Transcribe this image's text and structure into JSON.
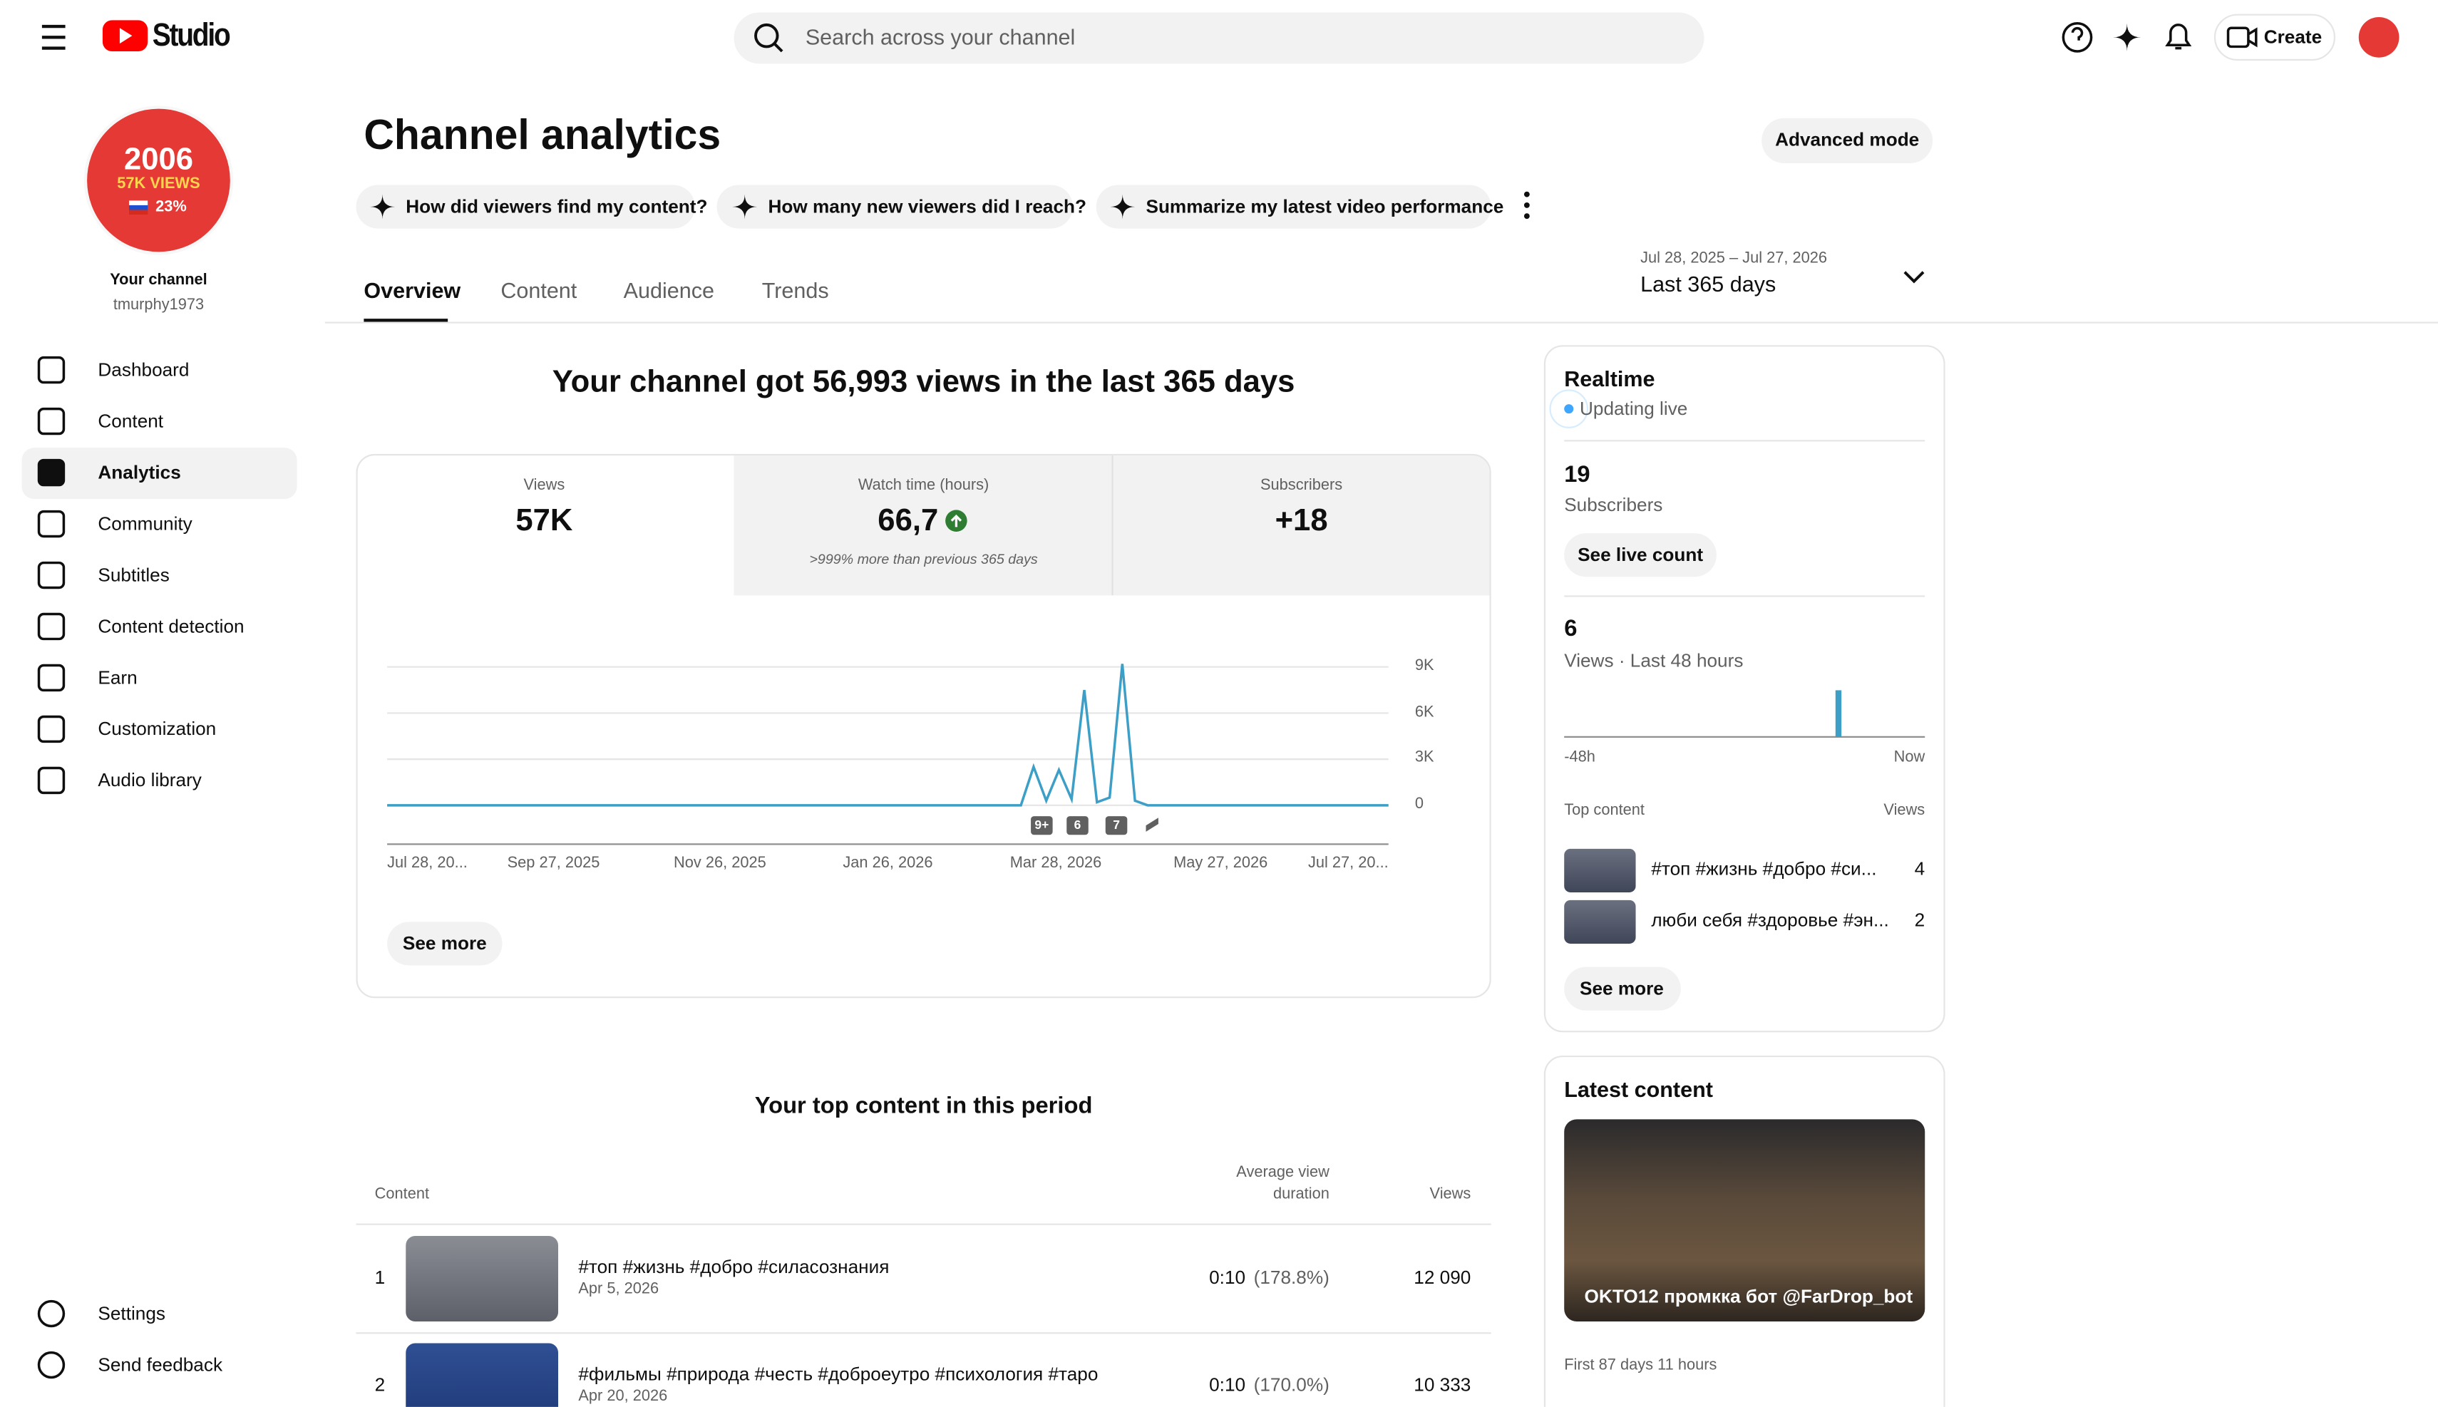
{
  "header": {
    "logo": "Studio",
    "search_placeholder": "Search across your channel",
    "create": "Create"
  },
  "sidebar": {
    "avatar_lines": [
      "2006",
      "57K VIEWS",
      "23%"
    ],
    "channel_label": "Your channel",
    "handle": "tmurphy1973",
    "nav": [
      "Dashboard",
      "Content",
      "Analytics",
      "Community",
      "Subtitles",
      "Content detection",
      "Earn",
      "Customization",
      "Audio library"
    ],
    "footer": [
      "Settings",
      "Send feedback"
    ]
  },
  "page": {
    "title": "Channel analytics",
    "advanced": "Advanced mode",
    "prompts": [
      "How did viewers find my content?",
      "How many new viewers did I reach?",
      "Summarize my latest video performance"
    ],
    "tabs": [
      "Overview",
      "Content",
      "Audience",
      "Trends"
    ],
    "date_range": "Jul 28, 2025 – Jul 27, 2026",
    "period": "Last 365 days"
  },
  "summary": {
    "headline": "Your channel got 56,993 views in the last 365 days",
    "metrics": [
      {
        "label": "Views",
        "value": "57K"
      },
      {
        "label": "Watch time (hours)",
        "value": "66,7",
        "note": ">999% more than previous 365 days"
      },
      {
        "label": "Subscribers",
        "value": "+18"
      }
    ],
    "see_more": "See more"
  },
  "views_chart": {
    "type": "line",
    "color": "#3d9fc6",
    "values": [
      0,
      0,
      0,
      0,
      0,
      0,
      0,
      0,
      0,
      0,
      0,
      0,
      0,
      0,
      0,
      0,
      0,
      0,
      0,
      0,
      0,
      0,
      0,
      0,
      0,
      0,
      0,
      0,
      0,
      0,
      0,
      0,
      0,
      0,
      0,
      0,
      0,
      0,
      0,
      0,
      0,
      0,
      0,
      0,
      0,
      0,
      0,
      0,
      0,
      0,
      0,
      2500,
      300,
      2300,
      400,
      7500,
      200,
      500,
      9200,
      300,
      0,
      0,
      0,
      0,
      0,
      0,
      0,
      0,
      0,
      0,
      0,
      0,
      0,
      0,
      0,
      0,
      0,
      0,
      0,
      0
    ],
    "ylim": [
      0,
      9000
    ],
    "yticks": [
      0,
      {
        "value": 3000,
        "label": "3K"
      },
      {
        "value": 6000,
        "label": "6K"
      },
      {
        "value": 9000,
        "label": "9K"
      }
    ],
    "xtick_labels": [
      "Jul 28, 20...",
      "Sep 27, 2025",
      "Nov 26, 2025",
      "Jan 26, 2026",
      "Mar 28, 2026",
      "May 27, 2026",
      "Jul 27, 20..."
    ],
    "markers": [
      "9+",
      "6",
      "7"
    ]
  },
  "top_content": {
    "title": "Your top content in this period",
    "columns": [
      "Content",
      "Average view duration",
      "Views"
    ],
    "rows": [
      {
        "rank": "1",
        "title": "#топ #жизнь #добро #силасознания",
        "date": "Apr 5, 2026",
        "duration": "0:10",
        "pct": "(178.8%)",
        "views": "12 090"
      },
      {
        "rank": "2",
        "title": "#фильмы #природа #честь #доброеутро #психология #таро",
        "date": "Apr 20, 2026",
        "duration": "0:10",
        "pct": "(170.0%)",
        "views": "10 333"
      }
    ]
  },
  "realtime": {
    "title": "Realtime",
    "status": "Updating live",
    "subscribers": "19",
    "subscribers_label": "Subscribers",
    "live_count": "See live count",
    "views": "6",
    "views_label": "Views · Last 48 hours",
    "chart": {
      "type": "bar",
      "color": "#3d9fc6",
      "values": [
        0,
        0,
        0,
        0,
        0,
        0,
        0,
        0,
        0,
        0,
        0,
        0,
        0,
        0,
        0,
        0,
        0,
        0,
        0,
        0,
        0,
        0,
        0,
        0,
        0,
        0,
        0,
        0,
        0,
        0,
        0,
        0,
        0,
        0,
        0,
        0,
        6,
        0,
        0,
        0,
        0,
        0,
        0,
        0,
        0,
        0,
        0,
        0
      ]
    },
    "x_start": "-48h",
    "x_end": "Now",
    "top_header": [
      "Top content",
      "Views"
    ],
    "top": [
      {
        "title": "#топ #жизнь #добро #си...",
        "views": "4"
      },
      {
        "title": "люби себя #здоровье #эн...",
        "views": "2"
      }
    ],
    "see_more": "See more"
  },
  "latest": {
    "title": "Latest content",
    "video_title": "OKTO12 промкка бот @FarDrop_bot",
    "meta": "First 87 days 11 hours"
  }
}
